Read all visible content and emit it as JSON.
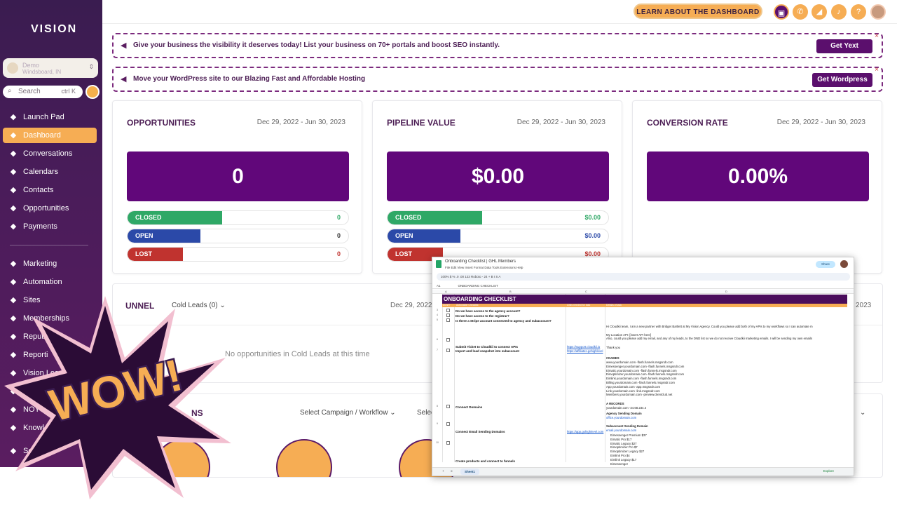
{
  "sidebar": {
    "logo": "VISION",
    "location": {
      "name": "Demo",
      "sub": "Windsboard, IN"
    },
    "search": {
      "placeholder": "Search",
      "shortcut": "ctrl K"
    },
    "items": [
      {
        "label": "Launch Pad",
        "icon": "rocket-icon"
      },
      {
        "label": "Dashboard",
        "icon": "gauge-icon",
        "active": true
      },
      {
        "label": "Conversations",
        "icon": "chat-icon"
      },
      {
        "label": "Calendars",
        "icon": "calendar-icon"
      },
      {
        "label": "Contacts",
        "icon": "contacts-icon"
      },
      {
        "label": "Opportunities",
        "icon": "opportunities-icon"
      },
      {
        "label": "Payments",
        "icon": "payments-icon"
      },
      {
        "label": "Marketing",
        "icon": "megaphone-icon"
      },
      {
        "label": "Automation",
        "icon": "automation-icon"
      },
      {
        "label": "Sites",
        "icon": "globe-icon"
      },
      {
        "label": "Memberships",
        "icon": "membership-icon"
      },
      {
        "label": "Reputation",
        "icon": "star-icon"
      },
      {
        "label": "Reporti",
        "icon": "chart-icon"
      },
      {
        "label": "Vision Lea",
        "icon": "lead-icon"
      },
      {
        "label": "R",
        "icon": "book-icon"
      },
      {
        "label": "NOYS",
        "icon": "users-icon"
      },
      {
        "label": "Knowl",
        "icon": "knowledge-icon"
      },
      {
        "label": "Settin",
        "icon": "gear-icon"
      }
    ]
  },
  "topbar": {
    "learn_button": "LEARN ABOUT THE DASHBOARD",
    "icons": [
      "chat-icon",
      "phone-icon",
      "announcement-icon",
      "bell-icon",
      "help-icon",
      "user-avatar"
    ]
  },
  "banners": [
    {
      "text": "Give your business the visibility it deserves today! List your business on 70+ portals and boost SEO instantly.",
      "button": "Get Yext"
    },
    {
      "text": "Move your WordPress site to our Blazing Fast and Affordable Hosting",
      "button": "Get Wordpress"
    }
  ],
  "cards": [
    {
      "title": "OPPORTUNITIES",
      "date": "Dec 29, 2022 - Jun 30, 2023",
      "value": "0",
      "rows": [
        {
          "label": "CLOSED",
          "value": "0",
          "fill": 0.43,
          "color": "#2fa866",
          "vcolor": "#2fa866"
        },
        {
          "label": "OPEN",
          "value": "0",
          "fill": 0.33,
          "color": "#2b49a8",
          "vcolor": "#333"
        },
        {
          "label": "LOST",
          "value": "0",
          "fill": 0.25,
          "color": "#c0332f",
          "vcolor": "#c0332f"
        }
      ]
    },
    {
      "title": "PIPELINE VALUE",
      "date": "Dec 29, 2022 - Jun 30, 2023",
      "value": "$0.00",
      "rows": [
        {
          "label": "CLOSED",
          "value": "$0.00",
          "fill": 0.43,
          "color": "#2fa866",
          "vcolor": "#2fa866"
        },
        {
          "label": "OPEN",
          "value": "$0.00",
          "fill": 0.33,
          "color": "#2b49a8",
          "vcolor": "#2b49a8"
        },
        {
          "label": "LOST",
          "value": "$0.00",
          "fill": 0.25,
          "color": "#c0332f",
          "vcolor": "#c0332f"
        }
      ]
    },
    {
      "title": "CONVERSION RATE",
      "date": "Dec 29, 2022 - Jun 30, 2023",
      "value": "0.00%",
      "rows": []
    }
  ],
  "funnel": {
    "title": "UNNEL",
    "select": "Cold Leads (0)",
    "date": "Dec 29, 2022",
    "date_right": "2023",
    "empty": "No opportunities in Cold Leads at this time"
  },
  "campaign": {
    "title_partial": "NS",
    "select1": "Select Campaign / Workflow",
    "select2": "Selec"
  },
  "sheet": {
    "title": "Onboarding Checklist | GHL Members",
    "menu": "File   Edit   View   Insert   Format   Data   Tools   Extensions   Help",
    "share": "Share",
    "toolbar": "100%    $  %  .0  .00  123    Roboto    -  24  +    B  I  S  A",
    "cell_ref": "A1",
    "formula": "ONBOARDING CHECKLIST",
    "banner": "ONBOARDING CHECKLIST",
    "subheader": [
      "Done?",
      "Actionable Checklist",
      "Links needed for task",
      "Details of task"
    ],
    "tab": "Sheet1",
    "explore": "Explore",
    "rows": [
      {
        "num": "3",
        "task": "Do we have access to the agency account?"
      },
      {
        "num": "4",
        "task": "Do we have access to the registrar?"
      },
      {
        "num": "5",
        "task": "Is there a Stripe account connected to agency and subaccount?"
      },
      {
        "num": "6",
        "task": "Submit Ticket to Cloudkii to connect APIs",
        "link": "https://support.cloudkii.io"
      },
      {
        "num": "7",
        "task": "Import and load snapshot into subaccount",
        "link": "https://affiliates.gohighlevel"
      },
      {
        "num": "8",
        "task": "Connect Domains"
      },
      {
        "num": "9",
        "task": "Connect Email Sending Domains",
        "link": "https://app.gohighlevel.com"
      },
      {
        "num": "10",
        "task": "Create products and connect to funnels"
      }
    ],
    "details": {
      "api": "Hi Cloudkii team, I am a new partner with Bridget Bartlett at My Vision Agency. Could you please add both of my APIs to my workflows so I can automate m\n\nMy Location API: [insert API here]\nAlso, could you please add my email, and any of my leads, to the DND list so we do not receive Cloudkii marketing emails. I will be sending my own emails",
      "thanks": "Thank you",
      "cnames_title": "CNAMES",
      "cnames": "www.yourdomain.com -flash.funnels.msgsndr.com\nEimessenger.yourdomain.com -flash.funnels.msgsndr.com\nEimatic.yourdomain.com -flash.funnels.msgsndr.com\nEimoptimizer.yourdomain.com -flash.funnels.msgsndr.com\nEimlink.yourdomain.com -flash.funnels.msgsndr.com\nBilling.yourdomain.com -flash.funnels.msgsndr.com\nApp.yourdomain.com -app.msgsndr.com\nLink.yourdomain.com -link.msgsndr.com\nMembers.yourdomain.com -preview.clientclub.net",
      "arecords_title": "A RECORDS",
      "arecords": "yourdomain.com -34.68.234.4",
      "agency_title": "Agency Sending Domain",
      "agency": "office.yourdomain.com",
      "sub_title": "Subaccount Sending Domain",
      "sub": "email.yourdomain.com",
      "products": "Eimessenger Premium $37\nEimatic Pro $17\nEimatic Legacy $27\nEimoptimizer Pro $7\nEimoptimizer Legacy $27\nEimlink Pro $4\nEimlink Legacy $17\nEimessenger"
    }
  },
  "overlay": {
    "text": "WOW!"
  },
  "colors": {
    "brand_purple": "#61077a",
    "accent_orange": "#f6ad54",
    "closed": "#2fa866",
    "open": "#2b49a8",
    "lost": "#c0332f"
  }
}
